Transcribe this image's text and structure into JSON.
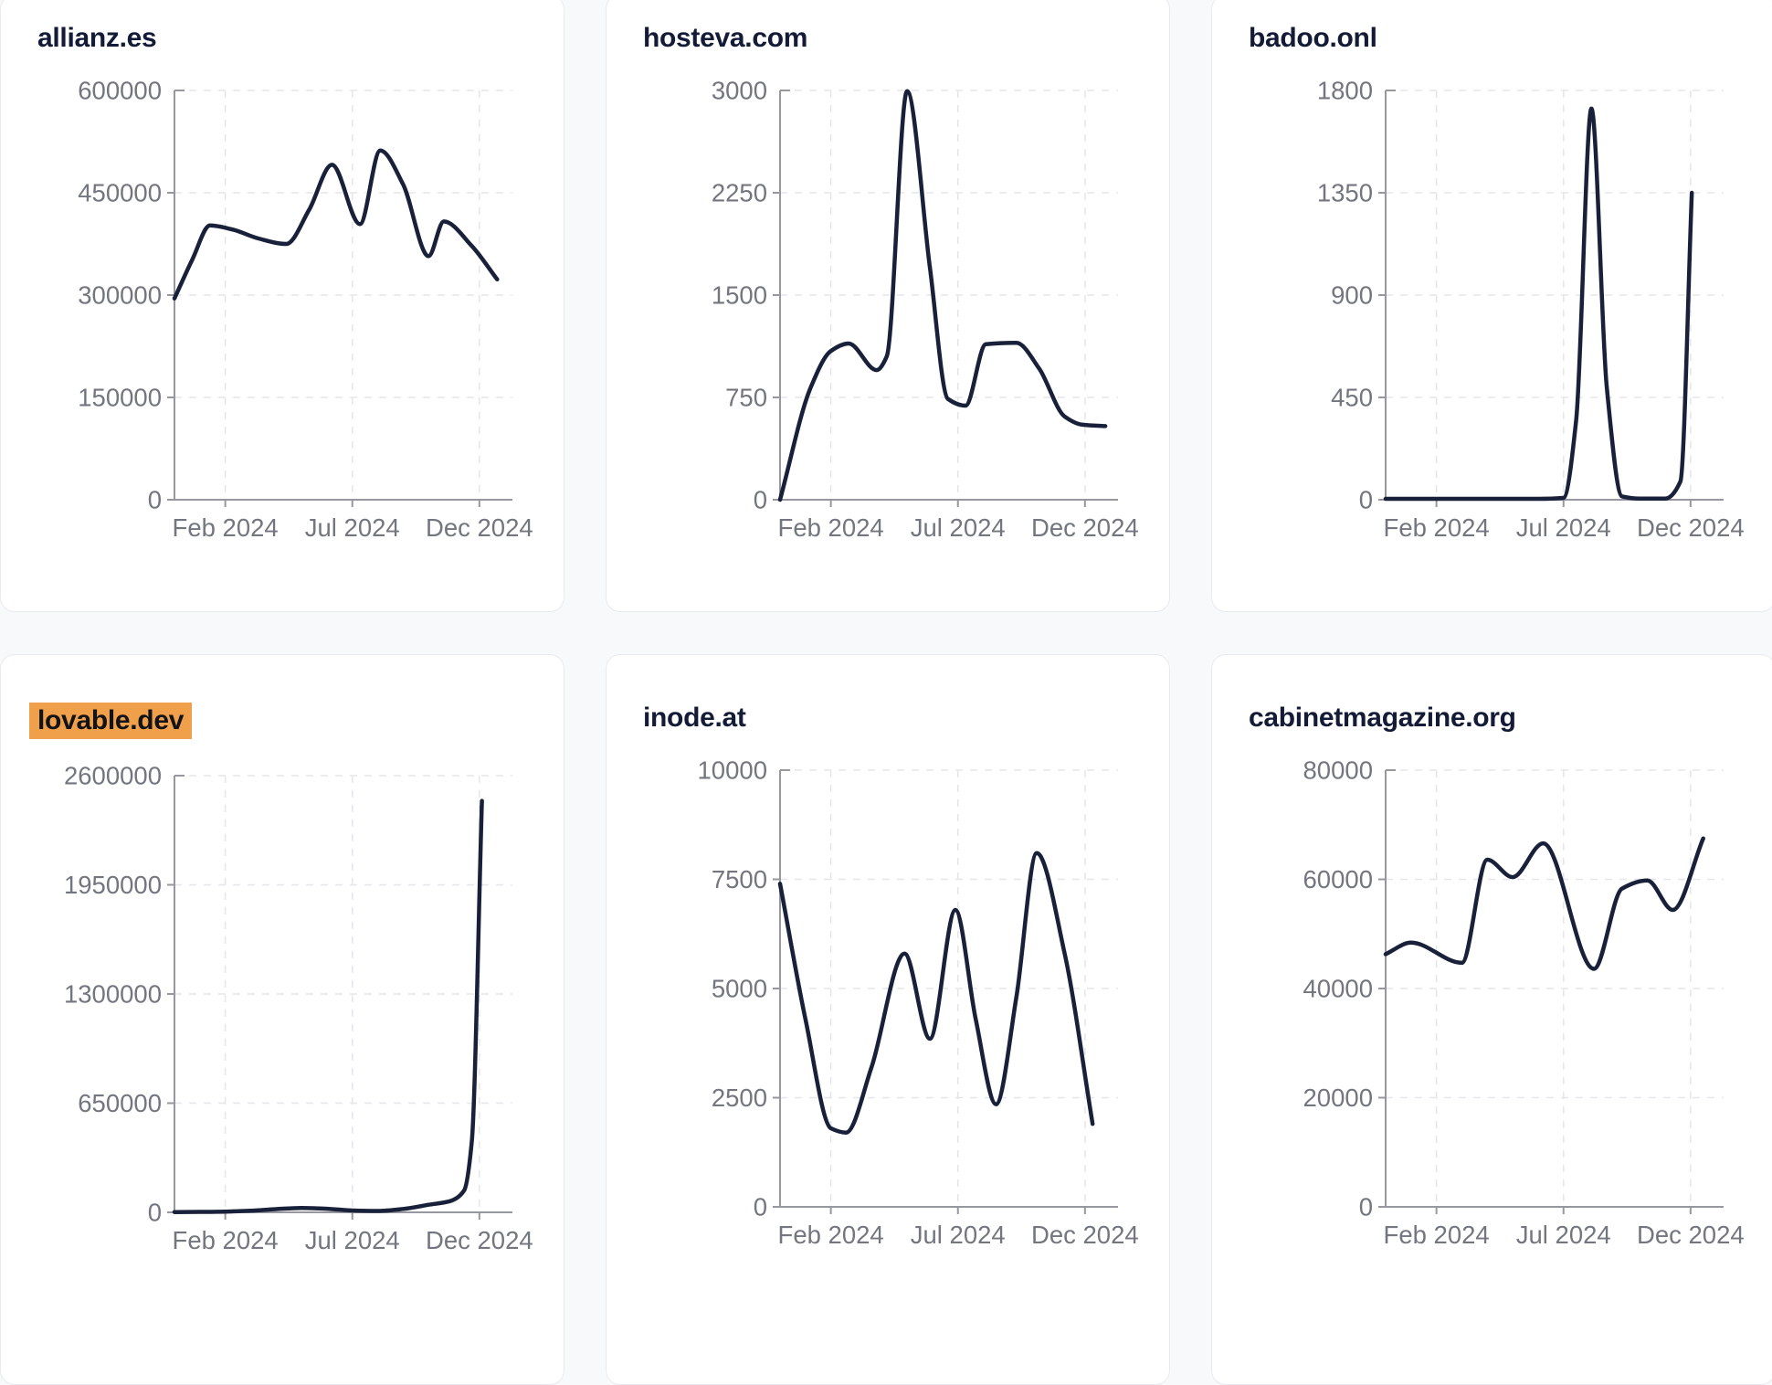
{
  "style": {
    "line_color": "#19203a",
    "title_color": "#141b36",
    "axis_color": "#97989f",
    "grid_color": "#e5e6ea",
    "tick_label_color": "#74767f",
    "card_background": "#ffffff",
    "card_border": "#e8eaef",
    "page_background": "#f8f9fb",
    "highlight_background": "#f0a04b",
    "highlight_text": "#111318"
  },
  "chart_data": [
    {
      "type": "line",
      "title": "allianz.es",
      "highlighted": false,
      "ylim": [
        0,
        600000
      ],
      "y_ticks": [
        600000,
        450000,
        300000,
        150000,
        0
      ],
      "x_tick_labels": [
        "Feb 2024",
        "Jul 2024",
        "Dec 2024"
      ],
      "x_tick_positions": [
        2,
        7,
        12
      ],
      "x_max": 13.3,
      "grid": "dashed",
      "points": [
        [
          0,
          295000
        ],
        [
          0.7,
          352000
        ],
        [
          1.4,
          402000
        ],
        [
          2.3,
          396000
        ],
        [
          3.3,
          383000
        ],
        [
          4.4,
          375000
        ],
        [
          5.3,
          425000
        ],
        [
          6.2,
          491000
        ],
        [
          7.3,
          404000
        ],
        [
          8.1,
          512000
        ],
        [
          9,
          462000
        ],
        [
          10,
          357000
        ],
        [
          10.6,
          408000
        ],
        [
          11.7,
          372000
        ],
        [
          12.7,
          323000
        ]
      ]
    },
    {
      "type": "line",
      "title": "hosteva.com",
      "highlighted": false,
      "ylim": [
        0,
        3000
      ],
      "y_ticks": [
        3000,
        2250,
        1500,
        750,
        0
      ],
      "x_tick_labels": [
        "Feb 2024",
        "Jul 2024",
        "Dec 2024"
      ],
      "x_tick_positions": [
        2,
        7,
        12
      ],
      "x_max": 13.3,
      "grid": "dashed",
      "points": [
        [
          0,
          0
        ],
        [
          1.2,
          820
        ],
        [
          2,
          1090
        ],
        [
          2.7,
          1145
        ],
        [
          3.8,
          950
        ],
        [
          4.2,
          1050
        ],
        [
          5,
          2995
        ],
        [
          5.9,
          1700
        ],
        [
          6.6,
          740
        ],
        [
          7.3,
          690
        ],
        [
          8.1,
          1140
        ],
        [
          9.3,
          1150
        ],
        [
          10.2,
          960
        ],
        [
          11.2,
          610
        ],
        [
          11.9,
          550
        ],
        [
          12.8,
          540
        ]
      ]
    },
    {
      "type": "line",
      "title": "badoo.onl",
      "highlighted": false,
      "ylim": [
        0,
        1800
      ],
      "y_ticks": [
        1800,
        1350,
        900,
        450,
        0
      ],
      "x_tick_labels": [
        "Feb 2024",
        "Jul 2024",
        "Dec 2024"
      ],
      "x_tick_positions": [
        2,
        7,
        12
      ],
      "x_max": 13.3,
      "grid": "dashed",
      "points": [
        [
          0,
          4
        ],
        [
          1,
          4
        ],
        [
          2,
          4
        ],
        [
          3,
          4
        ],
        [
          4,
          4
        ],
        [
          5,
          4
        ],
        [
          6,
          4
        ],
        [
          7,
          8
        ],
        [
          7.5,
          350
        ],
        [
          8.1,
          1720
        ],
        [
          8.7,
          500
        ],
        [
          9.3,
          15
        ],
        [
          10,
          5
        ],
        [
          11,
          5
        ],
        [
          11.6,
          80
        ],
        [
          12.05,
          1350
        ]
      ]
    },
    {
      "type": "line",
      "title": "lovable.dev",
      "highlighted": true,
      "ylim": [
        0,
        2600000
      ],
      "y_ticks": [
        2600000,
        1950000,
        1300000,
        650000,
        0
      ],
      "x_tick_labels": [
        "Feb 2024",
        "Jul 2024",
        "Dec 2024"
      ],
      "x_tick_positions": [
        2,
        7,
        12
      ],
      "x_max": 13.3,
      "grid": "dashed",
      "points": [
        [
          0,
          1500
        ],
        [
          1,
          2500
        ],
        [
          2,
          4500
        ],
        [
          3,
          9000
        ],
        [
          4,
          19000
        ],
        [
          5,
          26000
        ],
        [
          6,
          21000
        ],
        [
          7,
          11000
        ],
        [
          8,
          8000
        ],
        [
          9,
          20000
        ],
        [
          10,
          45000
        ],
        [
          10.8,
          65000
        ],
        [
          11.4,
          130000
        ],
        [
          11.7,
          420000
        ],
        [
          12.1,
          2450000
        ]
      ]
    },
    {
      "type": "line",
      "title": "inode.at",
      "highlighted": false,
      "ylim": [
        0,
        10000
      ],
      "y_ticks": [
        10000,
        7500,
        5000,
        2500,
        0
      ],
      "x_tick_labels": [
        "Feb 2024",
        "Jul 2024",
        "Dec 2024"
      ],
      "x_tick_positions": [
        2,
        7,
        12
      ],
      "x_max": 13.3,
      "grid": "dashed",
      "points": [
        [
          0,
          7400
        ],
        [
          1,
          4300
        ],
        [
          2,
          1800
        ],
        [
          2.6,
          1700
        ],
        [
          3.6,
          3200
        ],
        [
          4.9,
          5800
        ],
        [
          5.9,
          3850
        ],
        [
          6.9,
          6800
        ],
        [
          7.7,
          4300
        ],
        [
          8.5,
          2350
        ],
        [
          9.3,
          4800
        ],
        [
          10.1,
          8100
        ],
        [
          11.2,
          5800
        ],
        [
          12.3,
          1900
        ]
      ]
    },
    {
      "type": "line",
      "title": "cabinetmagazine.org",
      "highlighted": false,
      "ylim": [
        0,
        80000
      ],
      "y_ticks": [
        80000,
        60000,
        40000,
        20000,
        0
      ],
      "x_tick_labels": [
        "Feb 2024",
        "Jul 2024",
        "Dec 2024"
      ],
      "x_tick_positions": [
        2,
        7,
        12
      ],
      "x_max": 13.3,
      "grid": "dashed",
      "points": [
        [
          0,
          46300
        ],
        [
          1,
          48400
        ],
        [
          3,
          44700
        ],
        [
          4,
          63600
        ],
        [
          5,
          60400
        ],
        [
          6.2,
          66600
        ],
        [
          8.2,
          43600
        ],
        [
          9.3,
          58300
        ],
        [
          10.3,
          59800
        ],
        [
          11.3,
          54400
        ],
        [
          12.5,
          67500
        ]
      ]
    }
  ]
}
